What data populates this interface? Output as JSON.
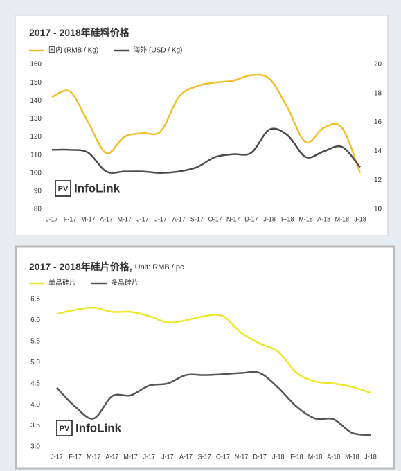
{
  "chart_data": [
    {
      "type": "line",
      "title": "2017 - 2018年硅料价格",
      "categories": [
        "J-17",
        "F-17",
        "M-17",
        "A-17",
        "M-17",
        "J-17",
        "J-17",
        "A-17",
        "S-17",
        "O-17",
        "N-17",
        "D-17",
        "J-18",
        "F-18",
        "M-18",
        "A-18",
        "M-18",
        "J-18"
      ],
      "series": [
        {
          "name": "国内 (RMB / Kg)",
          "color": "#f2bf2c",
          "values": [
            142,
            145,
            128,
            111,
            120,
            122,
            123,
            142,
            148,
            150,
            151,
            154,
            152,
            136,
            117,
            125,
            125,
            100
          ]
        },
        {
          "name": "海外 (USD / Kg)",
          "color": "#4a4a4a",
          "axis": "y2",
          "values": [
            14.1,
            14.1,
            13.9,
            12.6,
            12.6,
            12.6,
            12.5,
            12.6,
            12.9,
            13.6,
            13.8,
            13.9,
            15.5,
            15.1,
            13.6,
            14.0,
            14.3,
            12.9
          ]
        }
      ],
      "ylim": [
        80,
        160
      ],
      "yticks": [
        80,
        90,
        100,
        110,
        120,
        130,
        140,
        150,
        160
      ],
      "y2lim": [
        10,
        20
      ],
      "y2ticks": [
        10,
        12,
        14,
        16,
        18,
        20
      ],
      "watermark": {
        "badge": "PV",
        "text": "InfoLink"
      }
    },
    {
      "type": "line",
      "title": "2017 - 2018年硅片价格,",
      "subtitle": "Unit: RMB / pc",
      "categories": [
        "J-17",
        "F-17",
        "M-17",
        "A-17",
        "M-17",
        "J-17",
        "J-17",
        "A-17",
        "S-17",
        "O-17",
        "N-17",
        "D-17",
        "J-18",
        "F-18",
        "M-18",
        "A-18",
        "M-18",
        "J-18"
      ],
      "series": [
        {
          "name": "单晶硅片",
          "color": "#ede62a",
          "values": [
            6.15,
            6.25,
            6.3,
            6.2,
            6.2,
            6.1,
            5.95,
            6.0,
            6.1,
            6.1,
            5.7,
            5.45,
            5.25,
            4.75,
            4.55,
            4.5,
            4.42,
            4.28
          ]
        },
        {
          "name": "多晶硅片",
          "color": "#555555",
          "values": [
            4.4,
            3.95,
            3.67,
            4.2,
            4.22,
            4.45,
            4.5,
            4.7,
            4.7,
            4.72,
            4.75,
            4.75,
            4.4,
            3.95,
            3.67,
            3.65,
            3.33,
            3.28
          ]
        }
      ],
      "ylim": [
        3,
        6.5
      ],
      "yticks": [
        {
          "value": 3,
          "label": "3.0"
        },
        3.5,
        {
          "value": 4,
          "label": "4.0"
        },
        4.5,
        {
          "value": 5,
          "label": "5.0"
        },
        5.5,
        {
          "value": 6,
          "label": "6.0"
        },
        6.5
      ],
      "watermark": {
        "badge": "PV",
        "text": "InfoLink"
      }
    }
  ]
}
